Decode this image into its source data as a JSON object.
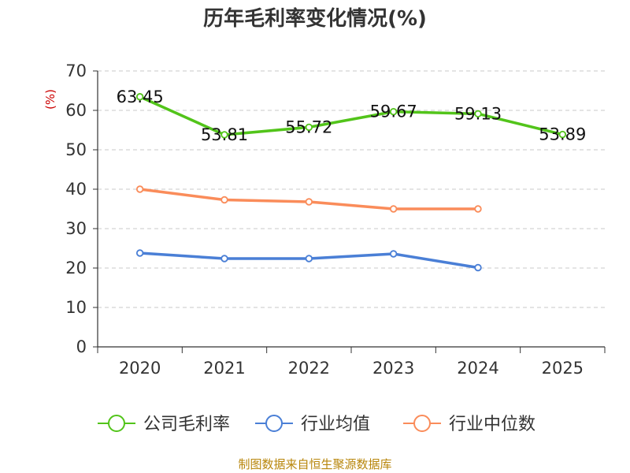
{
  "chart_data": {
    "type": "line",
    "title": "历年毛利率变化情况(%)",
    "ylabel": "(%)",
    "categories": [
      "2020",
      "2021",
      "2022",
      "2023",
      "2024",
      "2025"
    ],
    "ylim": [
      0,
      70
    ],
    "yticks": [
      0,
      10,
      20,
      30,
      40,
      50,
      60,
      70
    ],
    "grid": true,
    "legend_position": "bottom",
    "series": [
      {
        "name": "公司毛利率",
        "color": "#52c41a",
        "values": [
          63.45,
          53.81,
          55.72,
          59.67,
          59.13,
          53.89
        ],
        "labels": [
          "63.45",
          "53.81",
          "55.72",
          "59.67",
          "59.13",
          "53.89"
        ]
      },
      {
        "name": "行业均值",
        "color": "#4a7fd6",
        "values": [
          23.8,
          22.4,
          22.4,
          23.6,
          20.1,
          null
        ]
      },
      {
        "name": "行业中位数",
        "color": "#fa8c5a",
        "values": [
          40.0,
          37.3,
          36.8,
          35.0,
          35.0,
          null
        ]
      }
    ],
    "source": "制图数据来自恒生聚源数据库"
  }
}
